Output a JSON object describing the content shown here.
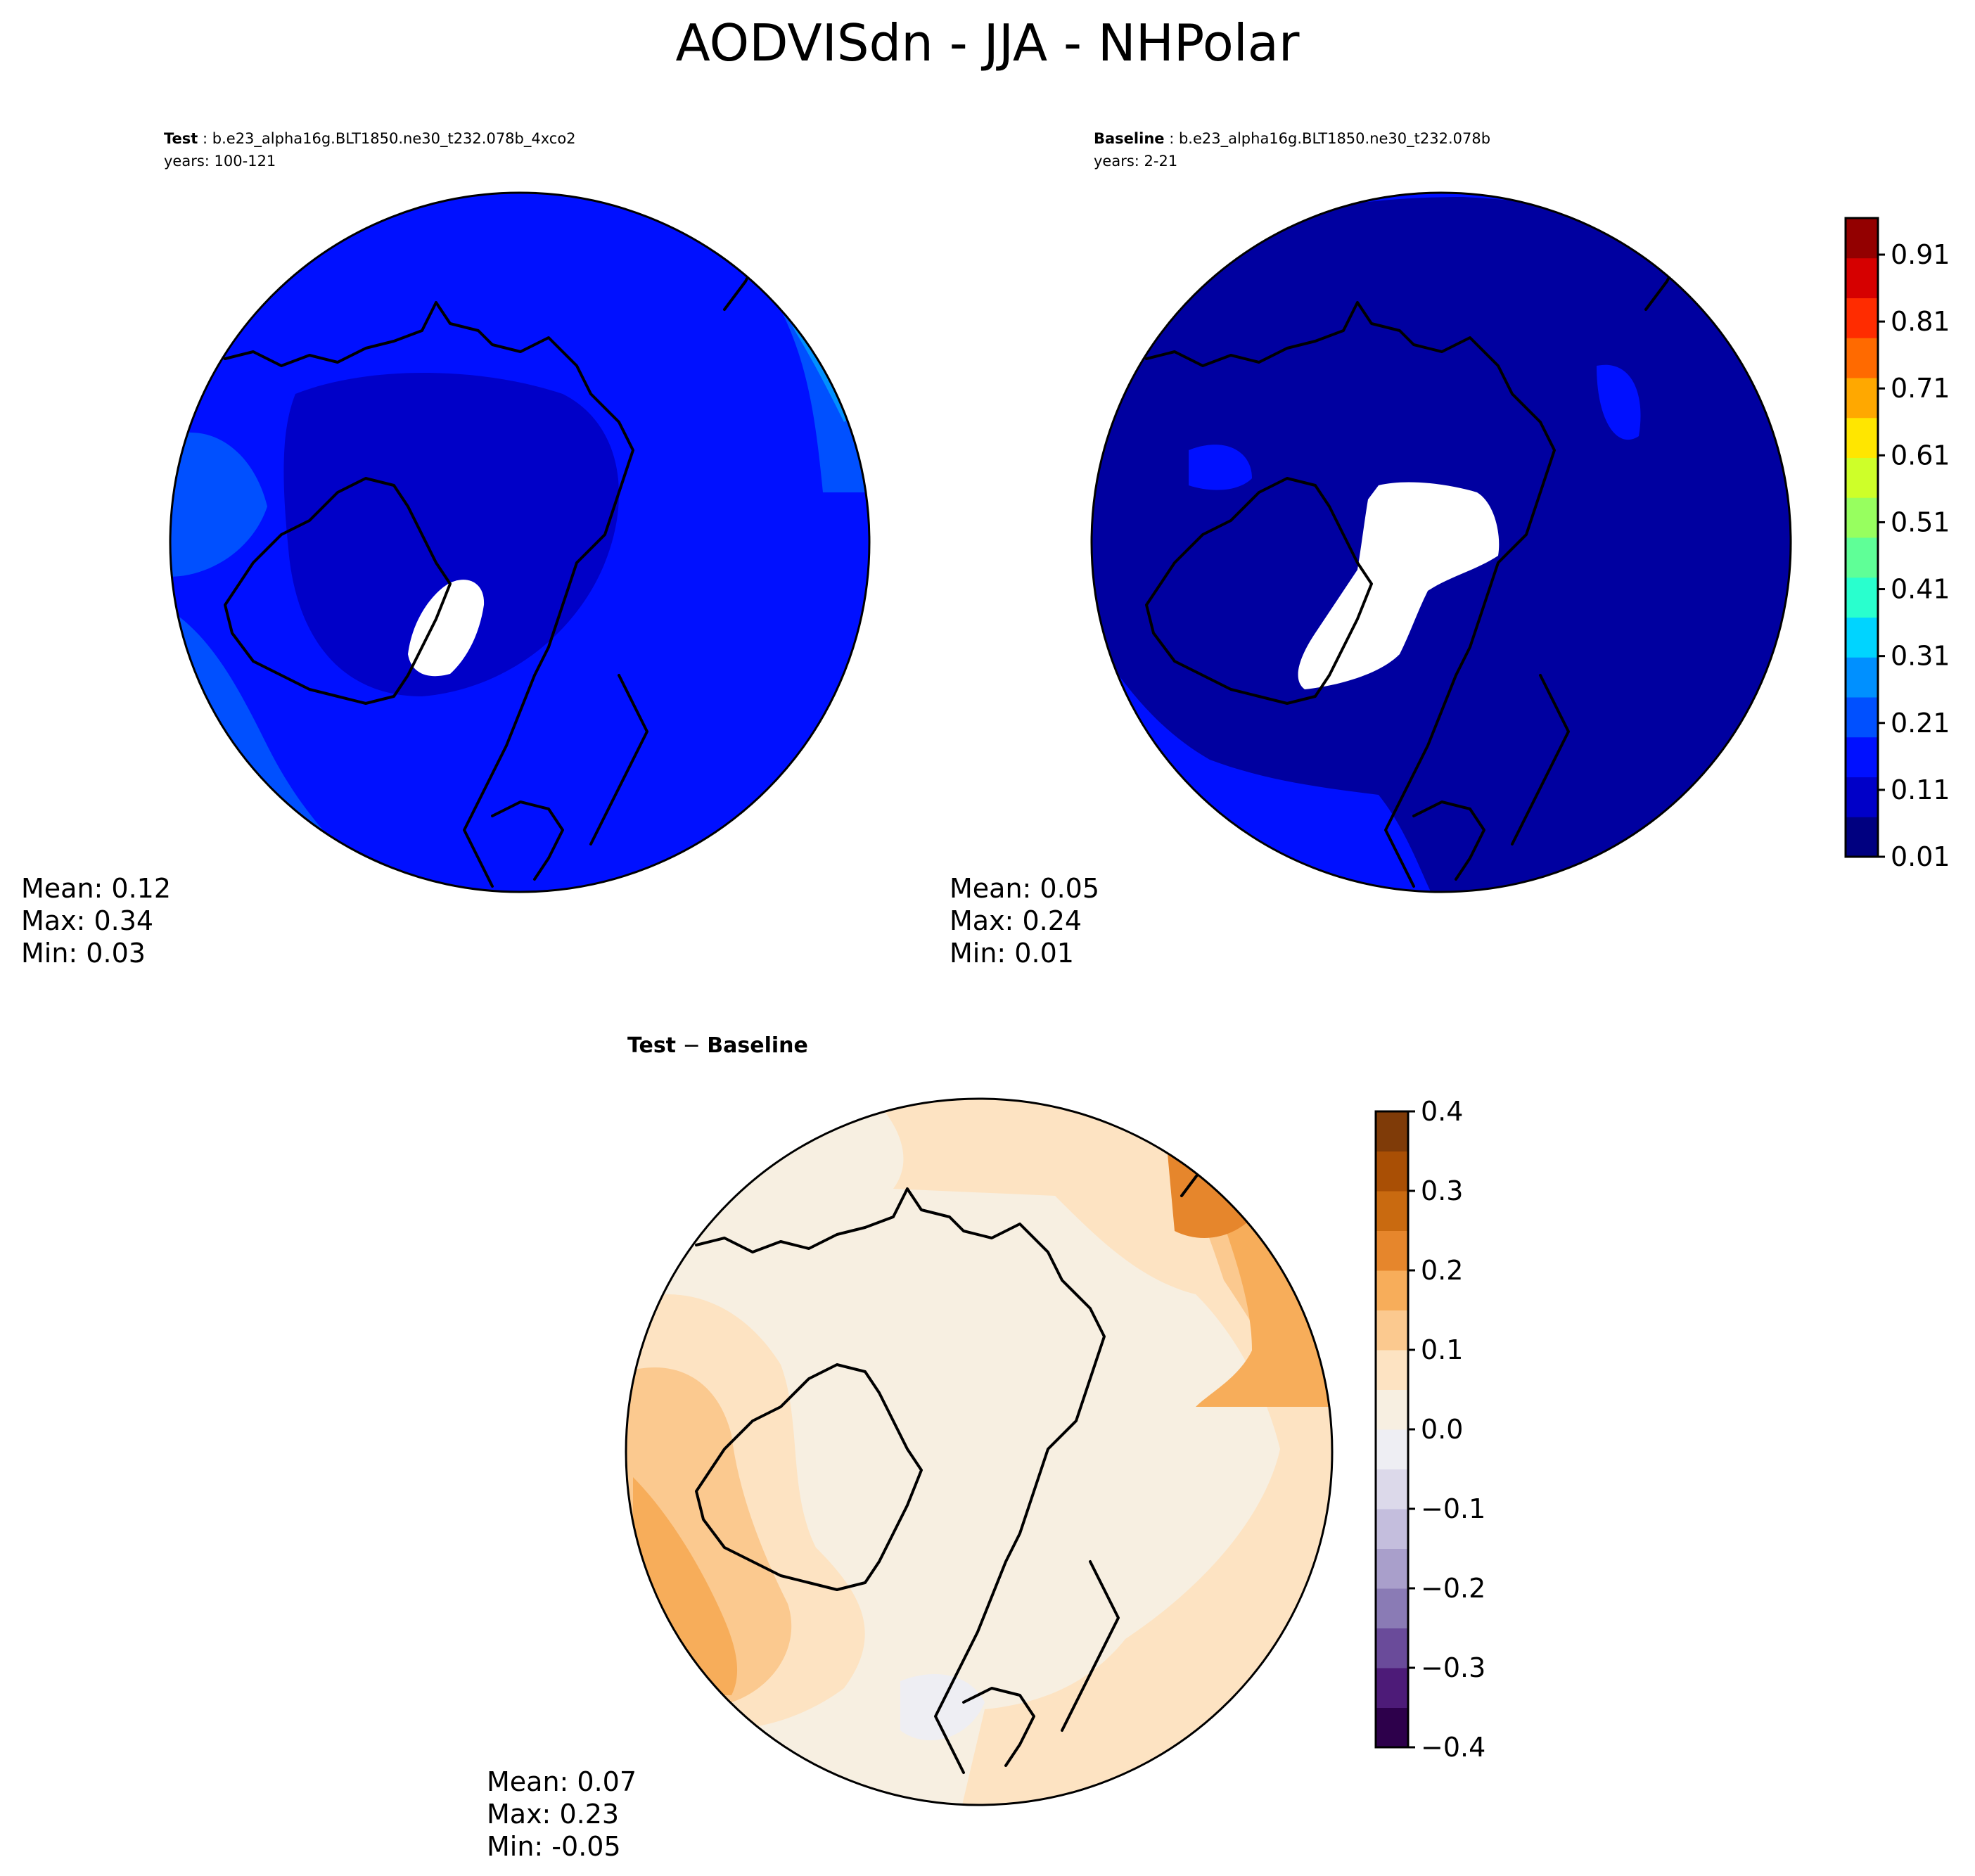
{
  "figure": {
    "title": "AODVISdn - JJA - NHPolar"
  },
  "chart_data": [
    {
      "type": "heatmap",
      "projection": "north-polar-stereographic",
      "label": "Test",
      "case": "b.e23_alpha16g.BLT1850.ne30_t232.078b_4xco2",
      "years": "years: 100-121",
      "stats": {
        "mean": "Mean:  0.12",
        "max": "Max:  0.34",
        "min": "Min:  0.03"
      },
      "colormap": "jet",
      "vmin": 0.01,
      "vmax": 1.0,
      "field_levels": [
        0.06,
        0.11,
        0.16,
        0.21,
        0.26,
        0.31,
        0.34
      ],
      "missing_region": "white patch over Greenland / ice sheet"
    },
    {
      "type": "heatmap",
      "projection": "north-polar-stereographic",
      "label": "Baseline",
      "case": "b.e23_alpha16g.BLT1850.ne30_t232.078b",
      "years": "years: 2-21",
      "stats": {
        "mean": "Mean:  0.05",
        "max": "Max:  0.24",
        "min": "Min:  0.01"
      },
      "colormap": "jet",
      "vmin": 0.01,
      "vmax": 1.0,
      "field_levels": [
        0.01,
        0.06,
        0.11
      ],
      "missing_region": "white patch over Greenland / ice sheet (larger)",
      "colorbar": {
        "ticks": [
          "0.91",
          "0.81",
          "0.71",
          "0.61",
          "0.51",
          "0.41",
          "0.31",
          "0.21",
          "0.11",
          "0.01"
        ],
        "colors": [
          "#000080",
          "#0000c8",
          "#0010ff",
          "#0050ff",
          "#0090ff",
          "#00d4ff",
          "#29ffce",
          "#5fff97",
          "#97ff5f",
          "#ceff29",
          "#ffe600",
          "#ffa800",
          "#ff6a00",
          "#ff2c00",
          "#d60000",
          "#930000"
        ]
      }
    },
    {
      "type": "heatmap",
      "projection": "north-polar-stereographic",
      "label": "Test",
      "label2": "Baseline",
      "stats": {
        "mean": "Mean:  0.07",
        "max": "Max:  0.23",
        "min": "Min: -0.05"
      },
      "colormap": "PuOr_r",
      "vmin": -0.4,
      "vmax": 0.4,
      "colorbar": {
        "ticks": [
          "0.4",
          "0.3",
          "0.2",
          "0.1",
          "0.0",
          "−0.1",
          "−0.2",
          "−0.3",
          "−0.4"
        ],
        "colors": [
          "#2d004b",
          "#4d1b78",
          "#6a4b9a",
          "#8a7bb5",
          "#a99fcb",
          "#c4bedd",
          "#dcd9ea",
          "#eeeef3",
          "#f7efe1",
          "#fde3c2",
          "#fbc98f",
          "#f7ad5a",
          "#e6862c",
          "#c96a10",
          "#a94f05",
          "#7f3b08"
        ]
      }
    }
  ]
}
